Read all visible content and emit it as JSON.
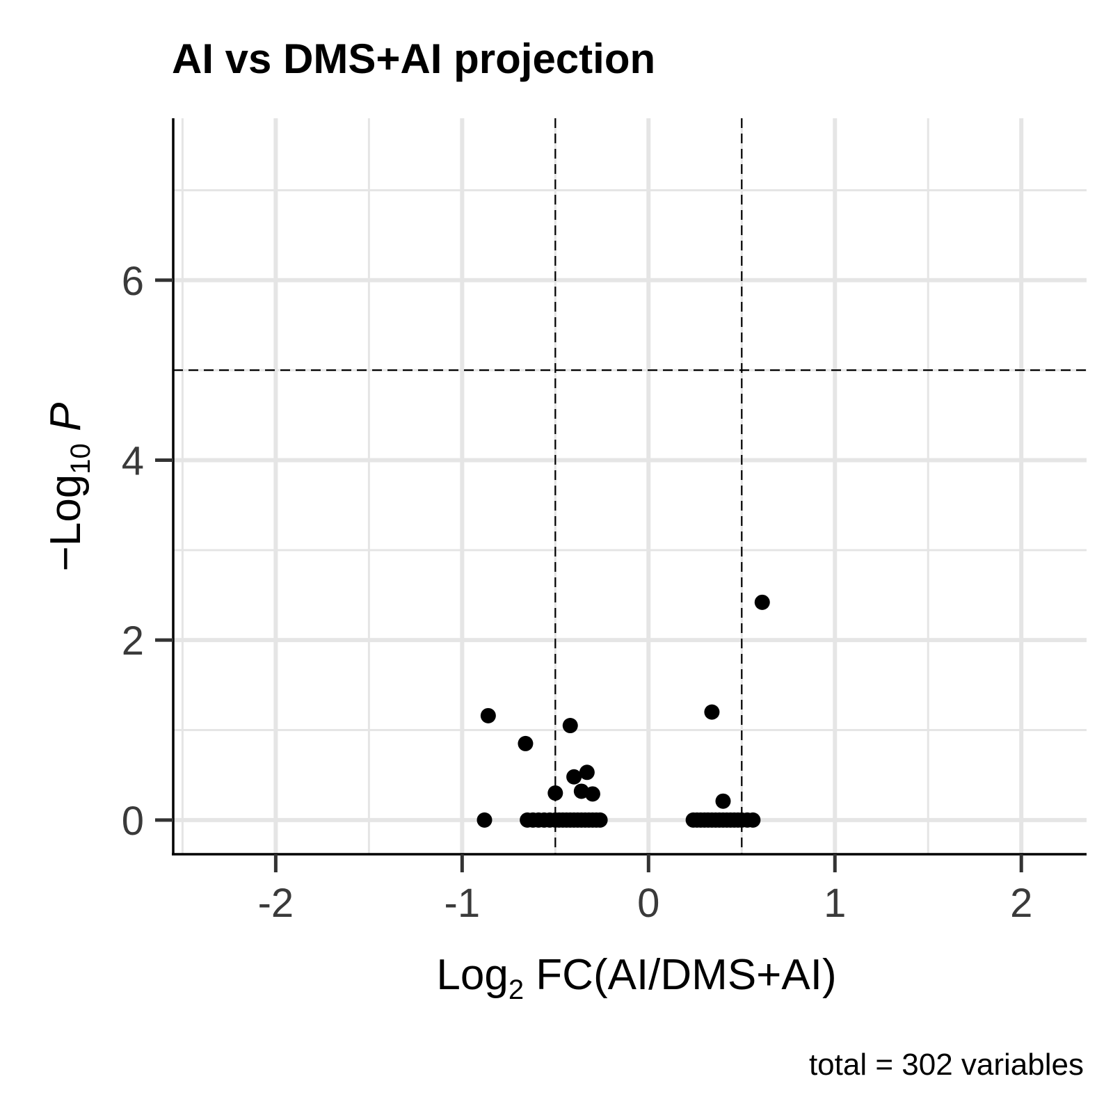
{
  "chart_data": {
    "type": "scatter",
    "title": "AI vs DMS+AI projection",
    "xlabel": {
      "prefix": "Log",
      "sub": "2",
      "suffix": " FC(AI/DMS+AI)"
    },
    "ylabel": {
      "prefix": "−Log",
      "sub": "10",
      "suffix": " P"
    },
    "caption": "total = 302 variables",
    "xlim": [
      -2.55,
      2.35
    ],
    "ylim": [
      -0.38,
      7.8
    ],
    "x_ticks": [
      -2,
      -1,
      0,
      1,
      2
    ],
    "x_tick_labels": [
      "-2",
      "-1",
      "0",
      "1",
      "2"
    ],
    "y_ticks": [
      0,
      2,
      4,
      6
    ],
    "y_tick_labels": [
      "0",
      "2",
      "4",
      "6"
    ],
    "x_minor_grid": [
      -2.5,
      -1.5,
      -0.5,
      0.5,
      1.5
    ],
    "y_minor_grid": [
      1,
      3,
      5,
      7
    ],
    "grid": true,
    "vlines": [
      -0.5,
      0.5
    ],
    "hline": 5,
    "point_color": "#000000",
    "points": [
      {
        "x": -0.86,
        "y": 1.16
      },
      {
        "x": -0.88,
        "y": 0.0
      },
      {
        "x": -0.66,
        "y": 0.85
      },
      {
        "x": -0.65,
        "y": 0.0
      },
      {
        "x": -0.62,
        "y": 0.0
      },
      {
        "x": -0.59,
        "y": 0.0
      },
      {
        "x": -0.56,
        "y": 0.0
      },
      {
        "x": -0.53,
        "y": 0.0
      },
      {
        "x": -0.5,
        "y": 0.3
      },
      {
        "x": -0.5,
        "y": 0.0
      },
      {
        "x": -0.48,
        "y": 0.0
      },
      {
        "x": -0.46,
        "y": 0.0
      },
      {
        "x": -0.44,
        "y": 0.0
      },
      {
        "x": -0.42,
        "y": 1.05
      },
      {
        "x": -0.42,
        "y": 0.0
      },
      {
        "x": -0.4,
        "y": 0.48
      },
      {
        "x": -0.4,
        "y": 0.0
      },
      {
        "x": -0.38,
        "y": 0.0
      },
      {
        "x": -0.36,
        "y": 0.32
      },
      {
        "x": -0.36,
        "y": 0.0
      },
      {
        "x": -0.34,
        "y": 0.0
      },
      {
        "x": -0.33,
        "y": 0.53
      },
      {
        "x": -0.32,
        "y": 0.0
      },
      {
        "x": -0.3,
        "y": 0.29
      },
      {
        "x": -0.3,
        "y": 0.0
      },
      {
        "x": -0.28,
        "y": 0.0
      },
      {
        "x": -0.26,
        "y": 0.0
      },
      {
        "x": 0.24,
        "y": 0.0
      },
      {
        "x": 0.26,
        "y": 0.0
      },
      {
        "x": 0.28,
        "y": 0.0
      },
      {
        "x": 0.3,
        "y": 0.0
      },
      {
        "x": 0.32,
        "y": 0.0
      },
      {
        "x": 0.34,
        "y": 1.2
      },
      {
        "x": 0.34,
        "y": 0.0
      },
      {
        "x": 0.36,
        "y": 0.0
      },
      {
        "x": 0.38,
        "y": 0.0
      },
      {
        "x": 0.4,
        "y": 0.21
      },
      {
        "x": 0.4,
        "y": 0.0
      },
      {
        "x": 0.42,
        "y": 0.0
      },
      {
        "x": 0.44,
        "y": 0.0
      },
      {
        "x": 0.46,
        "y": 0.0
      },
      {
        "x": 0.48,
        "y": 0.0
      },
      {
        "x": 0.5,
        "y": 0.0
      },
      {
        "x": 0.53,
        "y": 0.0
      },
      {
        "x": 0.56,
        "y": 0.0
      },
      {
        "x": 0.61,
        "y": 2.42
      }
    ]
  }
}
